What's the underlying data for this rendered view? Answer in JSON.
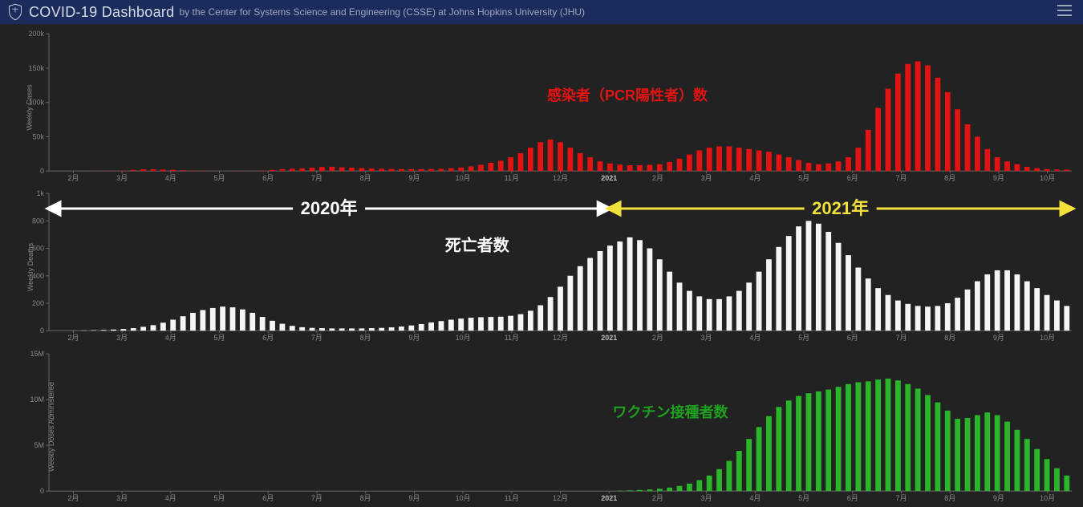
{
  "header": {
    "title": "COVID-19 Dashboard",
    "subtitle": "by the Center for Systems Science and Engineering (CSSE) at Johns Hopkins University (JHU)",
    "bg_color": "#1b2c5c",
    "text_color": "#c7cdda"
  },
  "page_bg": "#222222",
  "axis_color": "#666666",
  "tick_label_color": "#888888",
  "tick_label_fontsize": 9,
  "x_labels": [
    "2月",
    "3月",
    "4月",
    "5月",
    "6月",
    "7月",
    "8月",
    "9月",
    "10月",
    "11月",
    "12月",
    "2021",
    "2月",
    "3月",
    "4月",
    "5月",
    "6月",
    "7月",
    "8月",
    "9月",
    "10月"
  ],
  "annotations": {
    "year_2020": {
      "text": "2020年",
      "color": "#ffffff",
      "fontsize": 22
    },
    "year_2021": {
      "text": "2021年",
      "color": "#f2e13a",
      "fontsize": 22
    }
  },
  "charts": [
    {
      "id": "cases",
      "ylabel": "Weekly Cases",
      "overlay": {
        "text": "感染者（PCR陽性者）数",
        "color": "#e11313",
        "fontsize": 18,
        "top_pct": 42,
        "left_pct": 58
      },
      "bar_color": "#e11313",
      "ymax": 200000,
      "yticks": [
        0,
        50000,
        100000,
        150000,
        200000
      ],
      "ytick_labels": [
        "0",
        "50k",
        "100k",
        "150k",
        "200k"
      ],
      "values": [
        0,
        0,
        0,
        0,
        100,
        300,
        400,
        800,
        1500,
        2500,
        2500,
        2000,
        1800,
        1200,
        600,
        400,
        300,
        200,
        200,
        200,
        300,
        600,
        1500,
        2500,
        3200,
        3800,
        4800,
        5800,
        6200,
        5400,
        4800,
        4200,
        3600,
        3200,
        3000,
        2800,
        2600,
        2600,
        2800,
        3200,
        4000,
        5000,
        6800,
        9000,
        12000,
        15000,
        20000,
        26000,
        34000,
        42000,
        46000,
        42000,
        34000,
        26000,
        20000,
        14000,
        11000,
        9500,
        8500,
        8500,
        9000,
        10000,
        13000,
        18000,
        24000,
        30000,
        34000,
        36000,
        36000,
        34000,
        32000,
        30000,
        28000,
        24000,
        20000,
        16000,
        12000,
        10000,
        11000,
        14000,
        20000,
        34000,
        60000,
        92000,
        120000,
        142000,
        156000,
        160000,
        154000,
        136000,
        115000,
        90000,
        68000,
        50000,
        32000,
        20000,
        14000,
        10000,
        6000,
        4000,
        2800,
        2200,
        2000
      ]
    },
    {
      "id": "deaths",
      "ylabel": "Weekly Deaths",
      "overlay": {
        "text": "死亡者数",
        "color": "#ffffff",
        "fontsize": 20,
        "top_pct": 35,
        "left_pct": 44
      },
      "bar_color": "#f5f5f5",
      "ymax": 1000,
      "yticks": [
        0,
        200,
        400,
        600,
        800,
        1000
      ],
      "ytick_labels": [
        "0",
        "200",
        "400",
        "600",
        "800",
        "1k"
      ],
      "values": [
        0,
        0,
        1,
        2,
        3,
        5,
        8,
        12,
        18,
        28,
        40,
        58,
        80,
        105,
        130,
        150,
        165,
        175,
        170,
        155,
        130,
        100,
        72,
        50,
        35,
        25,
        20,
        18,
        16,
        16,
        16,
        16,
        18,
        20,
        24,
        30,
        38,
        48,
        60,
        70,
        80,
        88,
        94,
        98,
        100,
        102,
        108,
        120,
        145,
        185,
        245,
        320,
        400,
        470,
        530,
        580,
        620,
        650,
        680,
        660,
        600,
        520,
        430,
        350,
        290,
        250,
        230,
        230,
        250,
        290,
        350,
        430,
        520,
        610,
        690,
        760,
        800,
        780,
        720,
        640,
        550,
        460,
        380,
        310,
        260,
        220,
        195,
        180,
        175,
        180,
        200,
        240,
        300,
        360,
        410,
        440,
        440,
        410,
        360,
        310,
        260,
        220,
        180
      ]
    },
    {
      "id": "vaccines",
      "ylabel": "Weekly Doses Administered",
      "overlay": {
        "text": "ワクチン接種者数",
        "color": "#1ea01e",
        "fontsize": 18,
        "top_pct": 40,
        "left_pct": 62
      },
      "bar_color": "#2bb52b",
      "ymax": 15000000,
      "yticks": [
        0,
        5000000,
        10000000,
        15000000
      ],
      "ytick_labels": [
        "0",
        "5M",
        "10M",
        "15M"
      ],
      "values": [
        0,
        0,
        0,
        0,
        0,
        0,
        0,
        0,
        0,
        0,
        0,
        0,
        0,
        0,
        0,
        0,
        0,
        0,
        0,
        0,
        0,
        0,
        0,
        0,
        0,
        0,
        0,
        0,
        0,
        0,
        0,
        0,
        0,
        0,
        0,
        0,
        0,
        0,
        0,
        0,
        0,
        0,
        0,
        0,
        0,
        0,
        0,
        0,
        0,
        0,
        0,
        0,
        0,
        0,
        0,
        0,
        0,
        50000,
        80000,
        120000,
        180000,
        260000,
        380000,
        560000,
        820000,
        1200000,
        1700000,
        2400000,
        3300000,
        4400000,
        5700000,
        7000000,
        8200000,
        9200000,
        9900000,
        10400000,
        10700000,
        10900000,
        11100000,
        11400000,
        11700000,
        11900000,
        12000000,
        12200000,
        12300000,
        12100000,
        11700000,
        11200000,
        10500000,
        9700000,
        8800000,
        7900000,
        8000000,
        8300000,
        8600000,
        8300000,
        7600000,
        6700000,
        5700000,
        4600000,
        3500000,
        2500000,
        1700000
      ]
    }
  ]
}
